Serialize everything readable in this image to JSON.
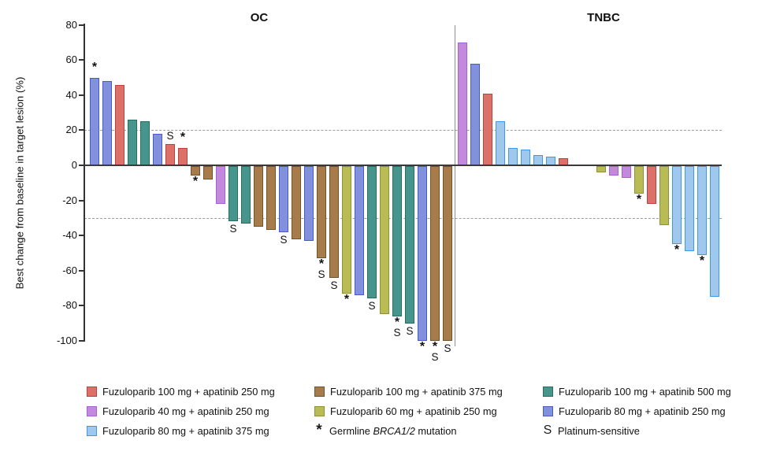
{
  "chart_data": {
    "type": "bar",
    "title": "",
    "y_axis": {
      "label": "Best change from baseline in target lesion (%)",
      "ticks": [
        80,
        60,
        40,
        20,
        0,
        -20,
        -40,
        -60,
        -80,
        -100
      ],
      "max": 80,
      "min": -100
    },
    "reference_lines": [
      20,
      -30
    ],
    "grid": "dashed reference lines only",
    "groups": {
      "a": {
        "label": "Fuzuloparib 100 mg + apatinib 250 mg",
        "fill": "#DB7168",
        "border": "#BE4239"
      },
      "b": {
        "label": "Fuzuloparib 100 mg + apatinib 375 mg",
        "fill": "#A67C4B",
        "border": "#73512C"
      },
      "c": {
        "label": "Fuzuloparib 100 mg + apatinib 500 mg",
        "fill": "#46968C",
        "border": "#286B60"
      },
      "d": {
        "label": "Fuzuloparib 40 mg + apatinib 250 mg",
        "fill": "#C289DC",
        "border": "#AB5FD6"
      },
      "e": {
        "label": "Fuzuloparib 60 mg + apatinib 250 mg",
        "fill": "#B9BC55",
        "border": "#8C9038"
      },
      "f": {
        "label": "Fuzuloparib 80 mg + apatinib 250 mg",
        "fill": "#8191DB",
        "border": "#4A58C8"
      },
      "g": {
        "label": "Fuzuloparib 80 mg + apatinib 375 mg",
        "fill": "#9FC8EF",
        "border": "#3E97E8"
      }
    },
    "marks_meaning": {
      "*": "Germline BRCA1/2 mutation",
      "S": "Platinum-sensitive"
    },
    "panels": [
      {
        "title": "OC",
        "bars": [
          {
            "v": 50,
            "g": "f",
            "m": [
              "*"
            ]
          },
          {
            "v": 48,
            "g": "f"
          },
          {
            "v": 46,
            "g": "a"
          },
          {
            "v": 26,
            "g": "c"
          },
          {
            "v": 25,
            "g": "c"
          },
          {
            "v": 18,
            "g": "f"
          },
          {
            "v": 12,
            "g": "a",
            "m": [
              "S"
            ]
          },
          {
            "v": 10,
            "g": "a",
            "m": [
              "*"
            ]
          },
          {
            "v": -6,
            "g": "b",
            "m": [
              "*"
            ]
          },
          {
            "v": -8,
            "g": "b"
          },
          {
            "v": -22,
            "g": "d"
          },
          {
            "v": -32,
            "g": "c",
            "m": [
              "S"
            ]
          },
          {
            "v": -33,
            "g": "c"
          },
          {
            "v": -35,
            "g": "b"
          },
          {
            "v": -37,
            "g": "b"
          },
          {
            "v": -38,
            "g": "f",
            "m": [
              "S"
            ]
          },
          {
            "v": -42,
            "g": "b"
          },
          {
            "v": -43,
            "g": "f"
          },
          {
            "v": -53,
            "g": "b",
            "m": [
              "*",
              "S"
            ]
          },
          {
            "v": -64,
            "g": "b",
            "m": [
              "S"
            ]
          },
          {
            "v": -73,
            "g": "e",
            "m": [
              "*"
            ]
          },
          {
            "v": -74,
            "g": "f"
          },
          {
            "v": -76,
            "g": "c",
            "m": [
              "S"
            ]
          },
          {
            "v": -85,
            "g": "e"
          },
          {
            "v": -86,
            "g": "c",
            "m": [
              "*",
              "S"
            ]
          },
          {
            "v": -90,
            "g": "c",
            "m": [
              "S"
            ]
          },
          {
            "v": -100,
            "g": "f",
            "m": [
              "*"
            ]
          },
          {
            "v": -100,
            "g": "b",
            "m": [
              "*",
              "S"
            ]
          },
          {
            "v": -100,
            "g": "b",
            "m": [
              "S"
            ]
          }
        ]
      },
      {
        "title": "TNBC",
        "bars": [
          {
            "v": 70,
            "g": "d"
          },
          {
            "v": 58,
            "g": "f"
          },
          {
            "v": 41,
            "g": "a"
          },
          {
            "v": 25,
            "g": "g"
          },
          {
            "v": 10,
            "g": "g"
          },
          {
            "v": 9,
            "g": "g"
          },
          {
            "v": 6,
            "g": "g"
          },
          {
            "v": 5,
            "g": "g"
          },
          {
            "v": 4,
            "g": "a"
          },
          {
            "v": 0,
            "g": null
          },
          {
            "v": 0,
            "g": null
          },
          {
            "v": -4,
            "g": "e"
          },
          {
            "v": -6,
            "g": "d"
          },
          {
            "v": -7,
            "g": "d"
          },
          {
            "v": -16,
            "g": "e",
            "m": [
              "*"
            ]
          },
          {
            "v": -22,
            "g": "a"
          },
          {
            "v": -34,
            "g": "e"
          },
          {
            "v": -45,
            "g": "g",
            "m": [
              "*"
            ]
          },
          {
            "v": -49,
            "g": "g"
          },
          {
            "v": -51,
            "g": "g",
            "m": [
              "*"
            ]
          },
          {
            "v": -75,
            "g": "g"
          }
        ]
      }
    ]
  },
  "legend": {
    "items": [
      {
        "group": "a",
        "label": "Fuzuloparib 100 mg + apatinib 250 mg"
      },
      {
        "group": "b",
        "label": "Fuzuloparib 100 mg + apatinib 375 mg"
      },
      {
        "group": "c",
        "label": "Fuzuloparib 100 mg + apatinib 500 mg"
      },
      {
        "group": "d",
        "label": "Fuzuloparib 40 mg + apatinib 250 mg"
      },
      {
        "group": "e",
        "label": "Fuzuloparib 60 mg + apatinib 250 mg"
      },
      {
        "group": "f",
        "label": "Fuzuloparib 80 mg + apatinib 250 mg"
      },
      {
        "group": "g",
        "label": "Fuzuloparib 80 mg + apatinib 375 mg"
      },
      {
        "symbol": "*",
        "prefix": "Germline ",
        "italic": "BRCA1/2",
        "suffix": " mutation"
      },
      {
        "symbol": "S",
        "label": "Platinum-sensitive"
      }
    ]
  }
}
